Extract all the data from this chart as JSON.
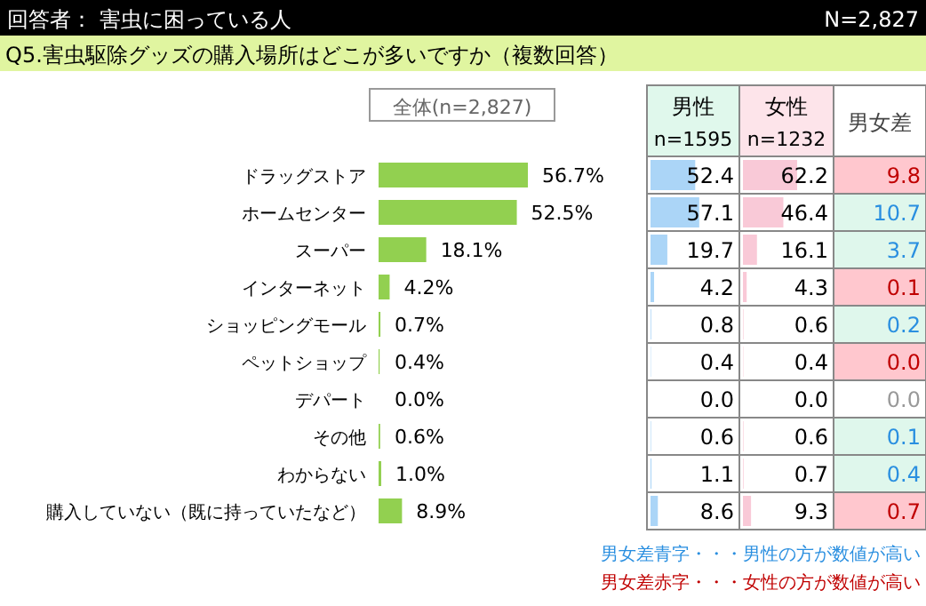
{
  "chart_data": [
    {
      "type": "bar",
      "orientation": "horizontal",
      "title": "Q5.害虫駆除グッズの購入場所はどこが多いですか（複数回答）",
      "subtitle": "回答者： 害虫に困っている人",
      "annotations": [
        "N=2,827"
      ],
      "legend": "top",
      "categories": [
        "ドラッグストア",
        "ホームセンター",
        "スーパー",
        "インターネット",
        "ショッピングモール",
        "ペットショップ",
        "デパート",
        "その他",
        "わからない",
        "購入していない（既に持っていたなど）"
      ],
      "series": [
        {
          "name": "全体(n=2,827)",
          "color": "#92d050",
          "values": [
            56.7,
            52.5,
            18.1,
            4.2,
            0.7,
            0.4,
            0.0,
            0.6,
            1.0,
            8.9
          ],
          "value_labels": [
            "56.7%",
            "52.5%",
            "18.1%",
            "4.2%",
            "0.7%",
            "0.4%",
            "0.0%",
            "0.6%",
            "1.0%",
            "8.9%"
          ]
        }
      ]
    },
    {
      "type": "bar",
      "orientation": "horizontal",
      "title": "男性",
      "subtitle": "n=1595",
      "categories": [
        null,
        null,
        null,
        null,
        null,
        null,
        null,
        null,
        null,
        null
      ],
      "series": [
        {
          "color": "#abd5f7",
          "values": [
            52.4,
            57.1,
            19.7,
            4.2,
            0.8,
            0.4,
            0.0,
            0.6,
            1.1,
            8.6
          ],
          "value_labels": [
            "52.4",
            "57.1",
            "19.7",
            "4.2",
            "0.8",
            "0.4",
            "0.0",
            "0.6",
            "1.1",
            "8.6"
          ]
        }
      ]
    },
    {
      "type": "bar",
      "orientation": "horizontal",
      "title": "女性",
      "subtitle": "n=1232",
      "categories": [
        null,
        null,
        null,
        null,
        null,
        null,
        null,
        null,
        null,
        null
      ],
      "series": [
        {
          "color": "#f9c9d7",
          "values": [
            62.2,
            46.4,
            16.1,
            4.3,
            0.6,
            0.4,
            0.0,
            0.6,
            0.7,
            9.3
          ],
          "value_labels": [
            "62.2",
            "46.4",
            "16.1",
            "4.3",
            "0.6",
            "0.4",
            "0.0",
            "0.6",
            "0.7",
            "9.3"
          ]
        }
      ]
    },
    {
      "type": "heatmap",
      "categories": [
        "男女差"
      ],
      "y_categories": [
        null,
        null,
        null,
        null,
        null,
        null,
        null,
        null,
        null,
        null
      ],
      "cells": [
        [
          9.8
        ],
        [
          10.7
        ],
        [
          3.7
        ],
        [
          0.1
        ],
        [
          0.2
        ],
        [
          0.0
        ],
        [
          0.0
        ],
        [
          0.1
        ],
        [
          0.4
        ],
        [
          0.7
        ]
      ],
      "cell_labels": [
        [
          "9.8"
        ],
        [
          "10.7"
        ],
        [
          "3.7"
        ],
        [
          "0.1"
        ],
        [
          "0.2"
        ],
        [
          "0.0"
        ],
        [
          "0.0"
        ],
        [
          "0.1"
        ],
        [
          "0.4"
        ],
        [
          "0.7"
        ]
      ],
      "colors": [
        "#ffc7ce",
        "#dff7ec",
        "#dff7ec",
        "#ffc7ce",
        "#dff7ec",
        "#ffc7ce",
        "#ffffff",
        "#dff7ec",
        "#dff7ec",
        "#ffc7ce"
      ],
      "annotations": [
        "男女差青字・・・男性の方が数値が高い",
        "男女差赤字・・・女性の方が数値が高い"
      ]
    }
  ]
}
